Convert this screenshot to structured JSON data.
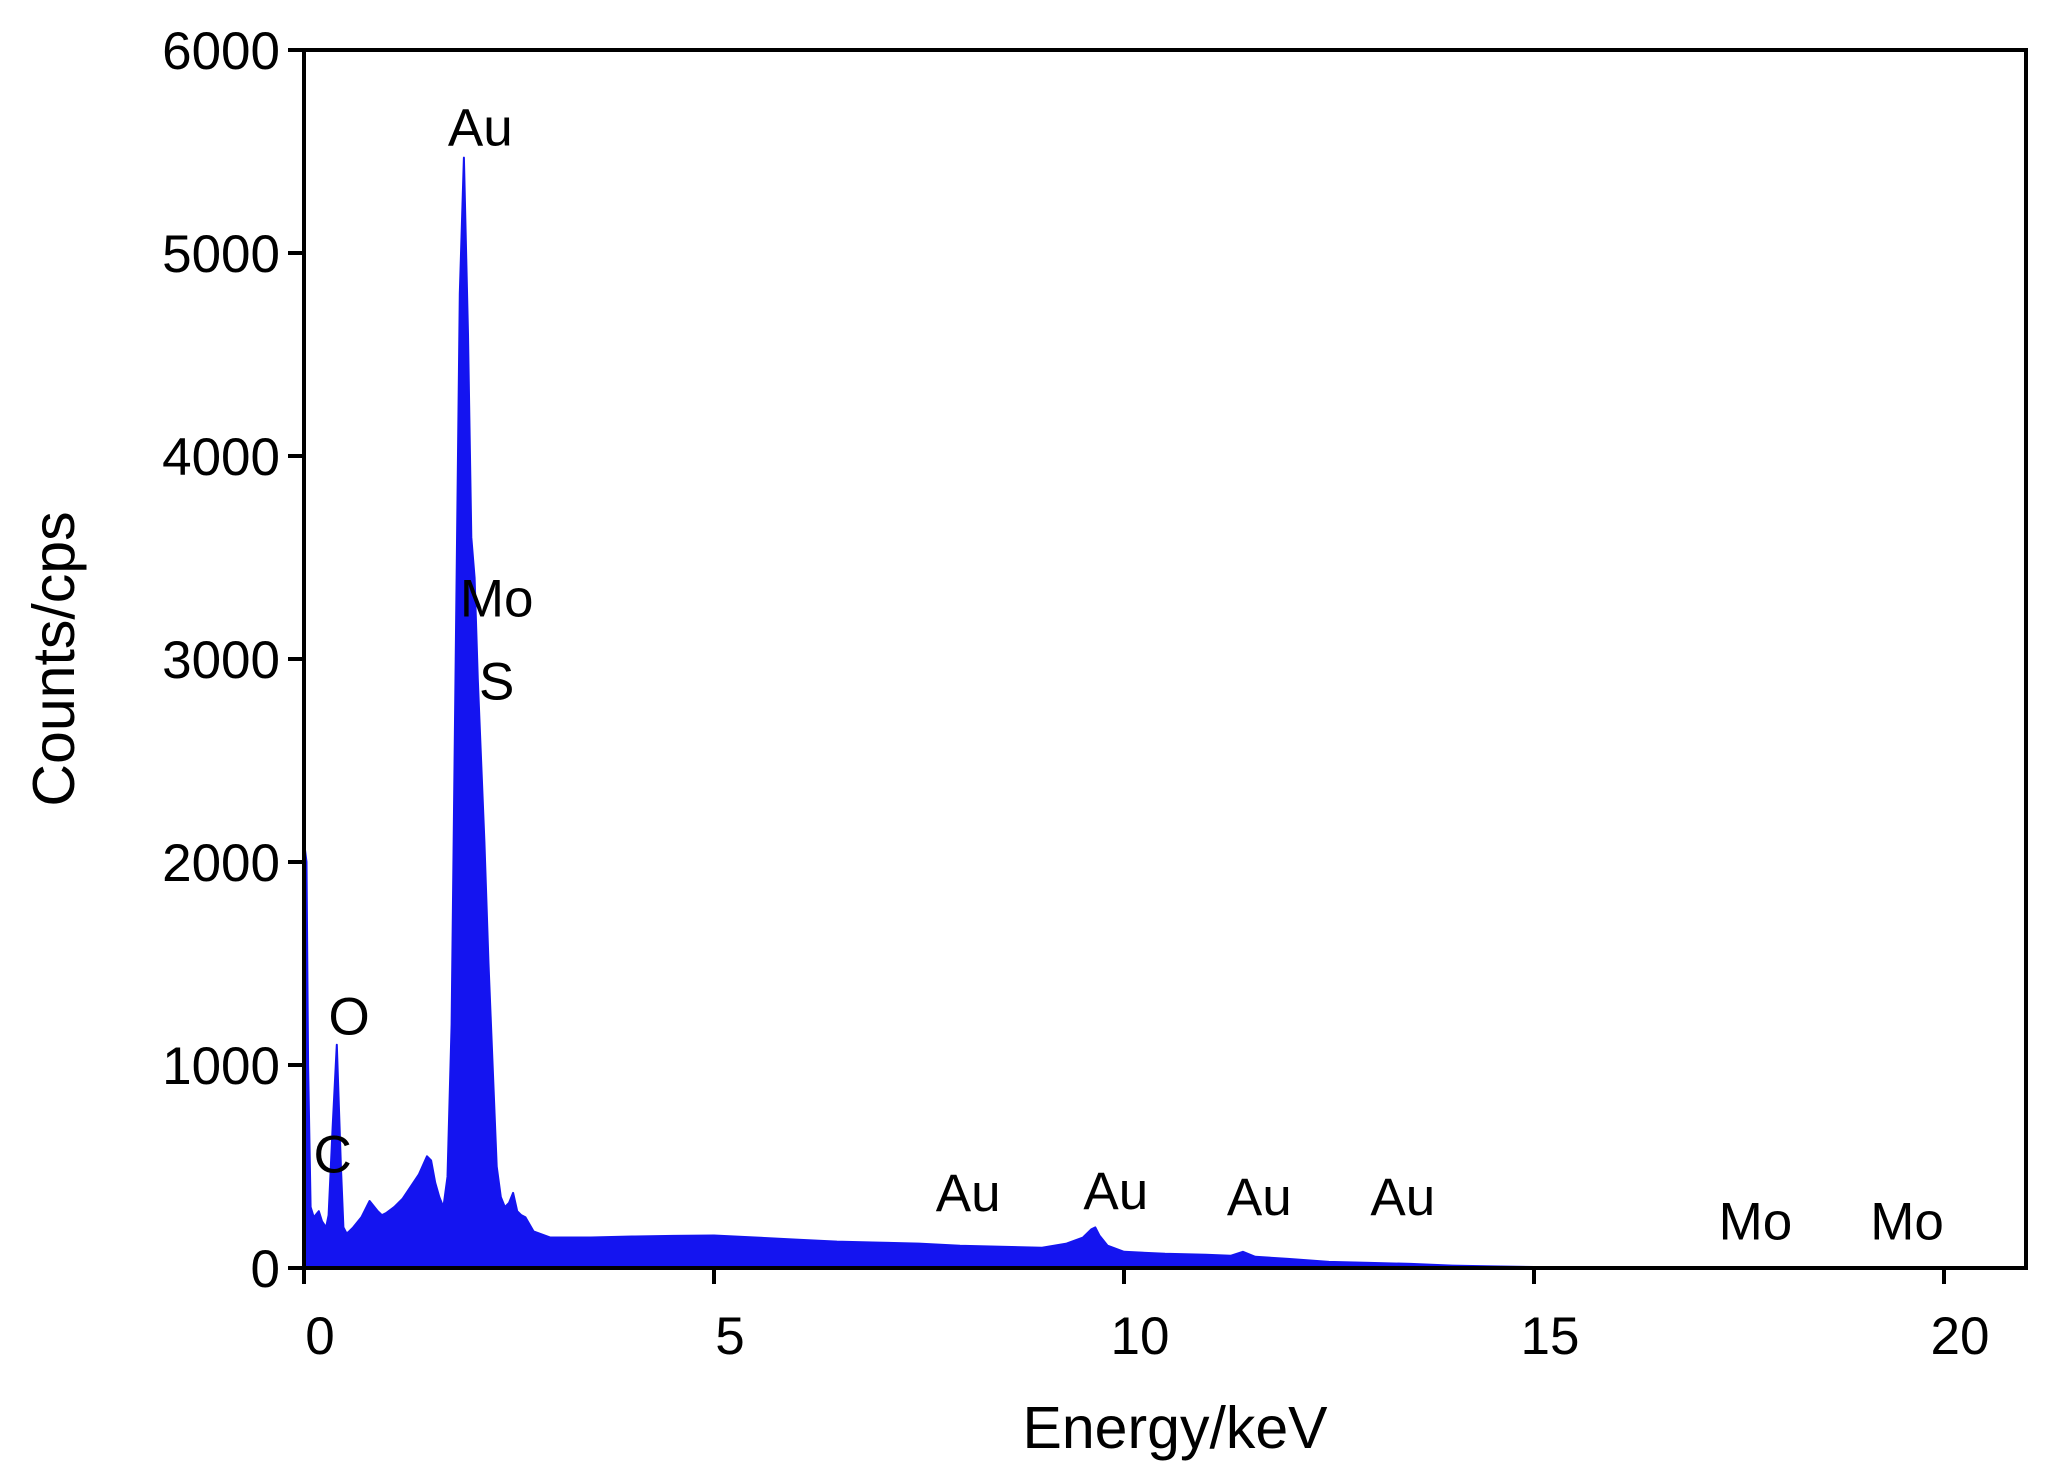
{
  "chart_data": {
    "type": "area",
    "title": "",
    "xlabel": "Energy/keV",
    "ylabel": "Counts/cps",
    "xlim": [
      0,
      21
    ],
    "ylim": [
      0,
      6000
    ],
    "x_ticks": [
      0,
      5,
      10,
      15,
      20
    ],
    "y_ticks": [
      0,
      1000,
      2000,
      3000,
      4000,
      5000,
      6000
    ],
    "x_tick_labels": [
      "0",
      "5",
      "10",
      "15",
      "20"
    ],
    "y_tick_labels": [
      "0",
      "1000",
      "2000",
      "3000",
      "4000",
      "5000",
      "6000"
    ],
    "grid": false,
    "colors": {
      "fill": "#1414f0",
      "axis": "#000000"
    },
    "series": [
      {
        "name": "",
        "x": [
          0.0,
          0.03,
          0.05,
          0.08,
          0.12,
          0.18,
          0.22,
          0.27,
          0.3,
          0.35,
          0.4,
          0.45,
          0.48,
          0.52,
          0.55,
          0.6,
          0.7,
          0.8,
          0.9,
          0.95,
          1.0,
          1.1,
          1.2,
          1.3,
          1.4,
          1.5,
          1.55,
          1.6,
          1.65,
          1.7,
          1.75,
          1.8,
          1.85,
          1.9,
          1.95,
          2.0,
          2.04,
          2.08,
          2.12,
          2.16,
          2.2,
          2.25,
          2.3,
          2.35,
          2.4,
          2.45,
          2.5,
          2.55,
          2.6,
          2.65,
          2.7,
          2.8,
          3.0,
          3.5,
          4.0,
          4.5,
          5.0,
          5.5,
          6.0,
          6.5,
          7.0,
          7.5,
          8.0,
          8.5,
          9.0,
          9.3,
          9.5,
          9.6,
          9.65,
          9.7,
          9.8,
          10.0,
          10.5,
          11.0,
          11.3,
          11.45,
          11.6,
          12.0,
          12.5,
          13.0,
          13.5,
          14.0,
          14.5,
          15.0,
          16.0,
          17.0,
          18.0,
          19.0,
          20.0,
          20.3
        ],
        "y": [
          2100,
          2000,
          1000,
          300,
          250,
          280,
          230,
          200,
          260,
          700,
          1100,
          500,
          200,
          170,
          180,
          200,
          250,
          330,
          280,
          260,
          270,
          300,
          340,
          400,
          460,
          550,
          530,
          420,
          350,
          300,
          450,
          1200,
          3000,
          4800,
          5470,
          4600,
          3600,
          3400,
          2900,
          2500,
          2100,
          1500,
          1000,
          500,
          350,
          300,
          320,
          370,
          280,
          260,
          250,
          180,
          150,
          150,
          155,
          158,
          160,
          150,
          140,
          130,
          125,
          120,
          110,
          105,
          100,
          120,
          150,
          190,
          200,
          160,
          110,
          80,
          70,
          65,
          60,
          80,
          55,
          45,
          30,
          25,
          20,
          12,
          8,
          5,
          5,
          5,
          5,
          5,
          5,
          0
        ]
      }
    ],
    "annotations": [
      {
        "text": "Au",
        "x": 2.15,
        "y": 5530
      },
      {
        "text": "Mo",
        "x": 2.35,
        "y": 3210
      },
      {
        "text": "S",
        "x": 2.35,
        "y": 2800
      },
      {
        "text": "O",
        "x": 0.55,
        "y": 1150
      },
      {
        "text": "C",
        "x": 0.35,
        "y": 470
      },
      {
        "text": "Au",
        "x": 8.1,
        "y": 280
      },
      {
        "text": "Au",
        "x": 9.9,
        "y": 290
      },
      {
        "text": "Au",
        "x": 11.65,
        "y": 260
      },
      {
        "text": "Au",
        "x": 13.4,
        "y": 260
      },
      {
        "text": "Mo",
        "x": 17.7,
        "y": 140
      },
      {
        "text": "Mo",
        "x": 19.55,
        "y": 140
      }
    ]
  }
}
